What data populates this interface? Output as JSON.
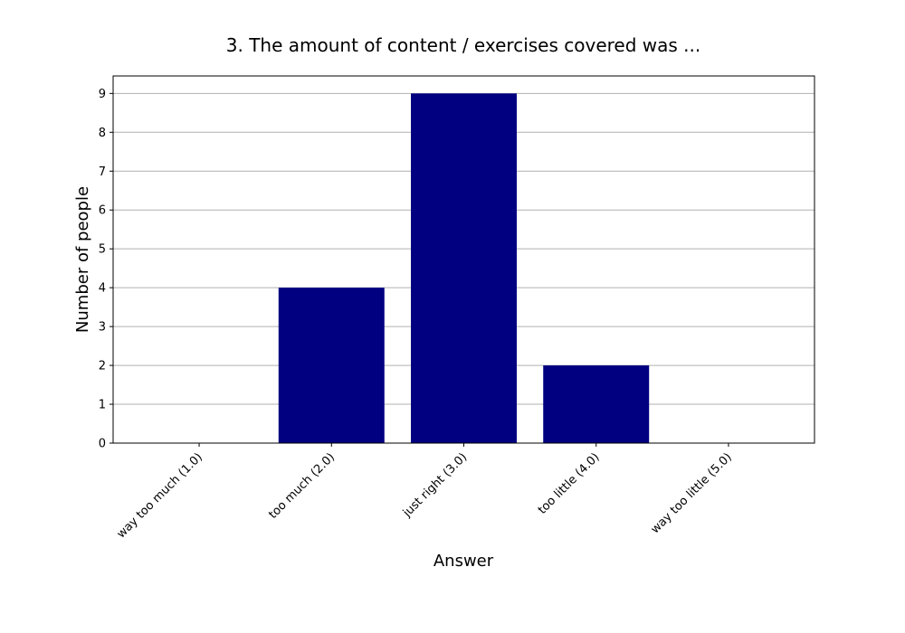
{
  "chart_data": {
    "type": "bar",
    "title": "3. The amount of content / exercises covered was ...",
    "xlabel": "Answer",
    "ylabel": "Number of people",
    "categories": [
      "way too much (1.0)",
      "too much (2.0)",
      "just right (3.0)",
      "too little (4.0)",
      "way too little (5.0)"
    ],
    "values": [
      0,
      4,
      9,
      2,
      0
    ],
    "ylim": [
      0,
      9.45
    ],
    "yticks": [
      0,
      1,
      2,
      3,
      4,
      5,
      6,
      7,
      8,
      9
    ],
    "grid": "horizontal",
    "bar_color": "#000080",
    "grid_color": "#b0b0b0"
  }
}
